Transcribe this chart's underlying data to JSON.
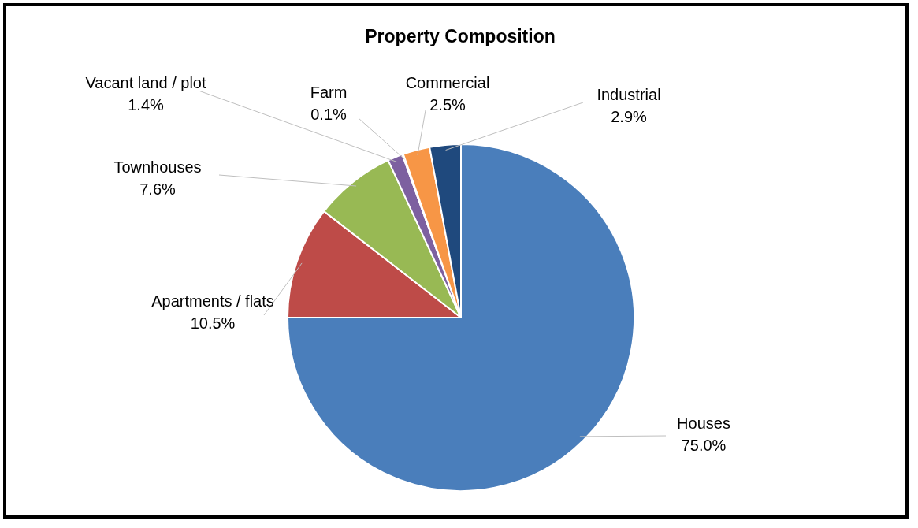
{
  "chart_data": {
    "type": "pie",
    "title": "Property Composition",
    "categories": [
      "Houses",
      "Apartments / flats",
      "Townhouses",
      "Vacant land / plot",
      "Farm",
      "Commercial",
      "Industrial"
    ],
    "values": [
      75.0,
      10.5,
      7.6,
      1.4,
      0.1,
      2.5,
      2.9
    ],
    "colors": [
      "#4a7ebb",
      "#be4b48",
      "#98b954",
      "#7d60a0",
      "#46aac5",
      "#f79646",
      "#1f497d"
    ],
    "value_labels": [
      "75.0%",
      "10.5%",
      "7.6%",
      "1.4%",
      "0.1%",
      "2.5%",
      "2.9%"
    ],
    "legend": false
  }
}
